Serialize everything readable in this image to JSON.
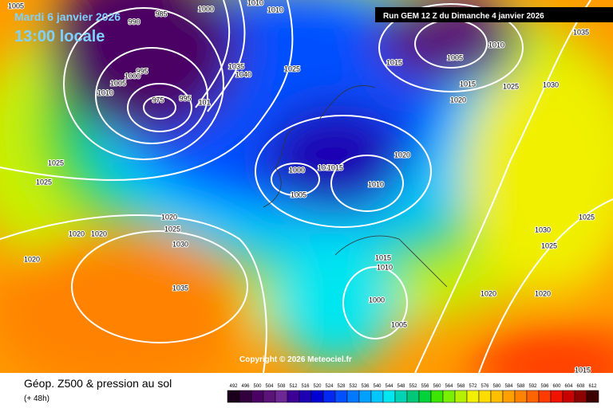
{
  "header": {
    "date": "Mardi 6 janvier 2026",
    "time": "13:00 locale",
    "run": "Run GEM 12 Z du Dimanche 4 janvier 2026"
  },
  "copyright": "Copyright © 2026 Meteociel.fr",
  "footer": {
    "title": "Géop. Z500 & pression au sol",
    "subtitle": "(+ 48h)"
  },
  "legend": {
    "levels": [
      492,
      496,
      500,
      504,
      508,
      512,
      516,
      520,
      524,
      528,
      532,
      536,
      540,
      544,
      548,
      552,
      556,
      560,
      564,
      568,
      572,
      576,
      580,
      584,
      588,
      592,
      596,
      600,
      604,
      608,
      612
    ],
    "colors": [
      "#1a001a",
      "#32003c",
      "#4b0064",
      "#5a1478",
      "#6e2896",
      "#3c0096",
      "#1e00b4",
      "#0000d2",
      "#0028f0",
      "#0050ff",
      "#0078ff",
      "#00a0ff",
      "#00c8ff",
      "#00e6f0",
      "#00d2b4",
      "#00c878",
      "#00d23c",
      "#3ce600",
      "#78f000",
      "#b4f000",
      "#f0f000",
      "#ffdc00",
      "#ffbe00",
      "#ffa000",
      "#ff8200",
      "#ff6400",
      "#ff3c00",
      "#f01400",
      "#c80000",
      "#8c0000",
      "#3c0000"
    ]
  },
  "isobar_labels": [
    "1005",
    "990",
    "985",
    "1000",
    "1010",
    "1010",
    "1035",
    "1040",
    "1025",
    "995",
    "1000",
    "1005",
    "1010",
    "975",
    "995",
    "101",
    "1025",
    "1025",
    "1020",
    "1025",
    "1030",
    "1020",
    "1020",
    "1020",
    "1035",
    "1000",
    "1010",
    "1015",
    "1005",
    "1010",
    "1020",
    "1015",
    "1010",
    "1000",
    "1005",
    "1005",
    "1010",
    "1015",
    "1015",
    "1020",
    "1025",
    "1030",
    "1035",
    "1025",
    "1030",
    "1025",
    "1020",
    "1020",
    "1015"
  ]
}
